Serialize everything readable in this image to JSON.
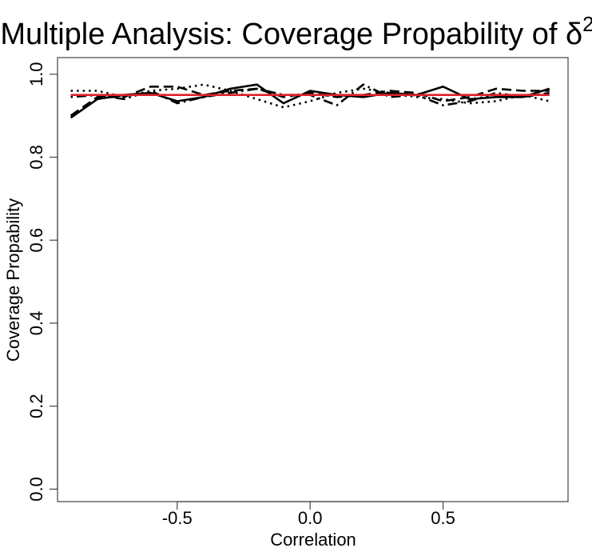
{
  "chart_data": {
    "type": "line",
    "title": "Multiple Analysis: Coverage Propability of δ",
    "title_superscript": "2",
    "xlabel": "Correlation",
    "ylabel": "Coverage Propability",
    "xlim": [
      -0.95,
      0.97
    ],
    "ylim": [
      -0.03,
      1.04
    ],
    "xticks": [
      -0.5,
      0.0,
      0.5
    ],
    "xtick_labels": [
      "-0.5",
      "0.0",
      "0.5"
    ],
    "yticks": [
      0.0,
      0.2,
      0.4,
      0.6,
      0.8,
      1.0
    ],
    "ytick_labels": [
      "0.0",
      "0.2",
      "0.4",
      "0.6",
      "0.8",
      "1.0"
    ],
    "grid": false,
    "x": [
      -0.9,
      -0.8,
      -0.7,
      -0.6,
      -0.5,
      -0.4,
      -0.3,
      -0.2,
      -0.1,
      0.0,
      0.1,
      0.2,
      0.3,
      0.4,
      0.5,
      0.6,
      0.7,
      0.8,
      0.9
    ],
    "series": [
      {
        "style": "solid",
        "color": "#000000",
        "values": [
          0.895,
          0.94,
          0.95,
          0.955,
          0.935,
          0.945,
          0.965,
          0.975,
          0.93,
          0.96,
          0.95,
          0.945,
          0.955,
          0.95,
          0.97,
          0.94,
          0.945,
          0.945,
          0.965
        ]
      },
      {
        "style": "dashed",
        "color": "#000000",
        "values": [
          0.9,
          0.945,
          0.945,
          0.97,
          0.97,
          0.95,
          0.96,
          0.965,
          0.945,
          0.955,
          0.945,
          0.95,
          0.96,
          0.955,
          0.935,
          0.945,
          0.965,
          0.96,
          0.96
        ]
      },
      {
        "style": "dotted",
        "color": "#000000",
        "values": [
          0.96,
          0.96,
          0.945,
          0.96,
          0.965,
          0.975,
          0.96,
          0.94,
          0.92,
          0.935,
          0.955,
          0.965,
          0.955,
          0.945,
          0.94,
          0.93,
          0.935,
          0.95,
          0.935
        ]
      },
      {
        "style": "dotdash",
        "color": "#000000",
        "values": [
          0.945,
          0.95,
          0.94,
          0.96,
          0.93,
          0.945,
          0.955,
          0.965,
          0.95,
          0.95,
          0.925,
          0.975,
          0.945,
          0.95,
          0.925,
          0.935,
          0.955,
          0.945,
          0.955
        ]
      },
      {
        "style": "solid",
        "color": "#e0202a",
        "values": [
          0.95,
          0.95,
          0.95,
          0.95,
          0.95,
          0.95,
          0.95,
          0.95,
          0.95,
          0.95,
          0.95,
          0.95,
          0.95,
          0.95,
          0.95,
          0.95,
          0.95,
          0.95,
          0.95
        ]
      }
    ]
  }
}
